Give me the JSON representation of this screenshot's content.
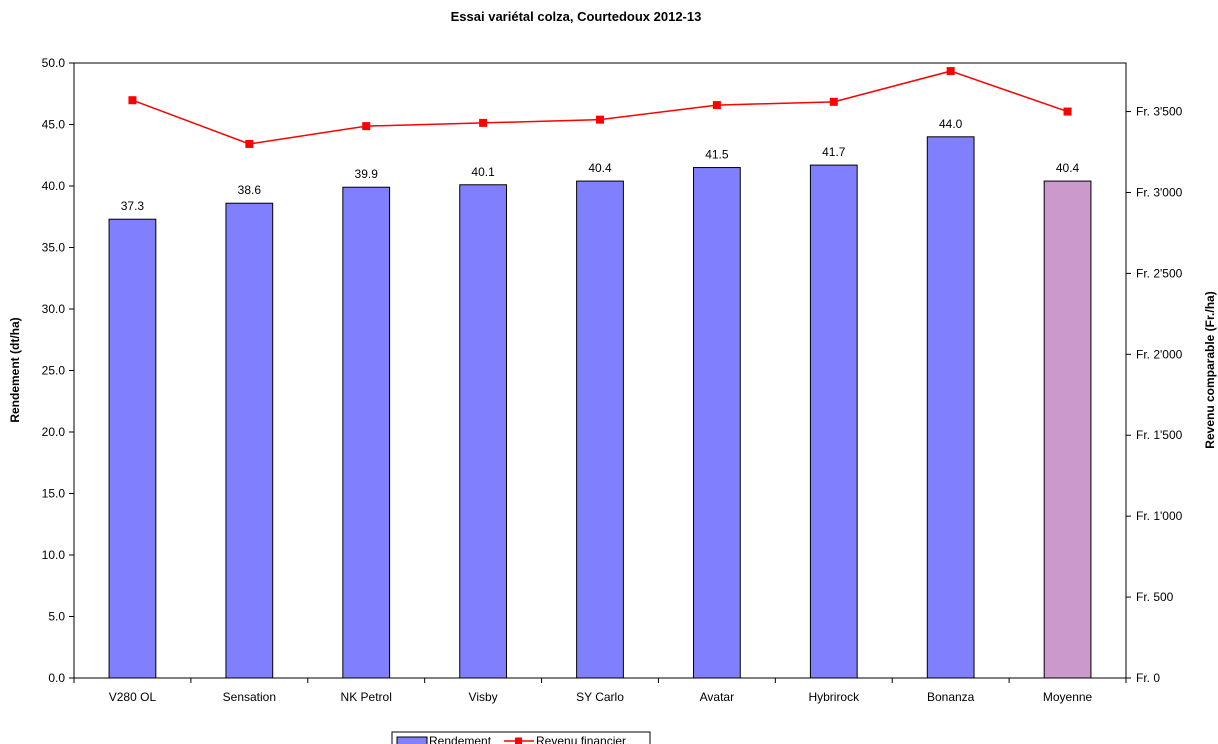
{
  "chart_data": {
    "type": "bar",
    "title": "Essai variétal colza, Courtedoux 2012-13",
    "ylabel": "Rendement (dt/ha)",
    "y2label": "Revenu comparable (Fr./ha)",
    "categories": [
      "V280 OL",
      "Sensation",
      "NK Petrol",
      "Visby",
      "SY Carlo",
      "Avatar",
      "Hybrirock",
      "Bonanza",
      "Moyenne"
    ],
    "series": [
      {
        "name": "Rendement",
        "type": "bar",
        "axis": "left",
        "values": [
          37.3,
          38.6,
          39.9,
          40.1,
          40.4,
          41.5,
          41.7,
          44.0,
          40.4
        ],
        "value_labels": [
          "37.3",
          "38.6",
          "39.9",
          "40.1",
          "40.4",
          "41.5",
          "41.7",
          "44.0",
          "40.4"
        ],
        "color": "#8080ff",
        "highlight_color": "#cc99cc",
        "highlight_index": 8
      },
      {
        "name": "Revenu financier",
        "type": "line",
        "axis": "right",
        "values": [
          3570,
          3300,
          3410,
          3430,
          3450,
          3540,
          3560,
          3750,
          3500
        ],
        "color": "#ff0000"
      }
    ],
    "ylim": [
      0,
      50
    ],
    "yticks": [
      "0.0",
      "5.0",
      "10.0",
      "15.0",
      "20.0",
      "25.0",
      "30.0",
      "35.0",
      "40.0",
      "45.0",
      "50.0"
    ],
    "y2lim": [
      0,
      3800
    ],
    "y2ticks": [
      {
        "value": 0,
        "label": "Fr. 0"
      },
      {
        "value": 500,
        "label": "Fr. 500"
      },
      {
        "value": 1000,
        "label": "Fr. 1'000"
      },
      {
        "value": 1500,
        "label": "Fr. 1'500"
      },
      {
        "value": 2000,
        "label": "Fr. 2'000"
      },
      {
        "value": 2500,
        "label": "Fr. 2'500"
      },
      {
        "value": 3000,
        "label": "Fr. 3'000"
      },
      {
        "value": 3500,
        "label": "Fr. 3'500"
      }
    ],
    "grid": false,
    "legend": "bottom"
  }
}
